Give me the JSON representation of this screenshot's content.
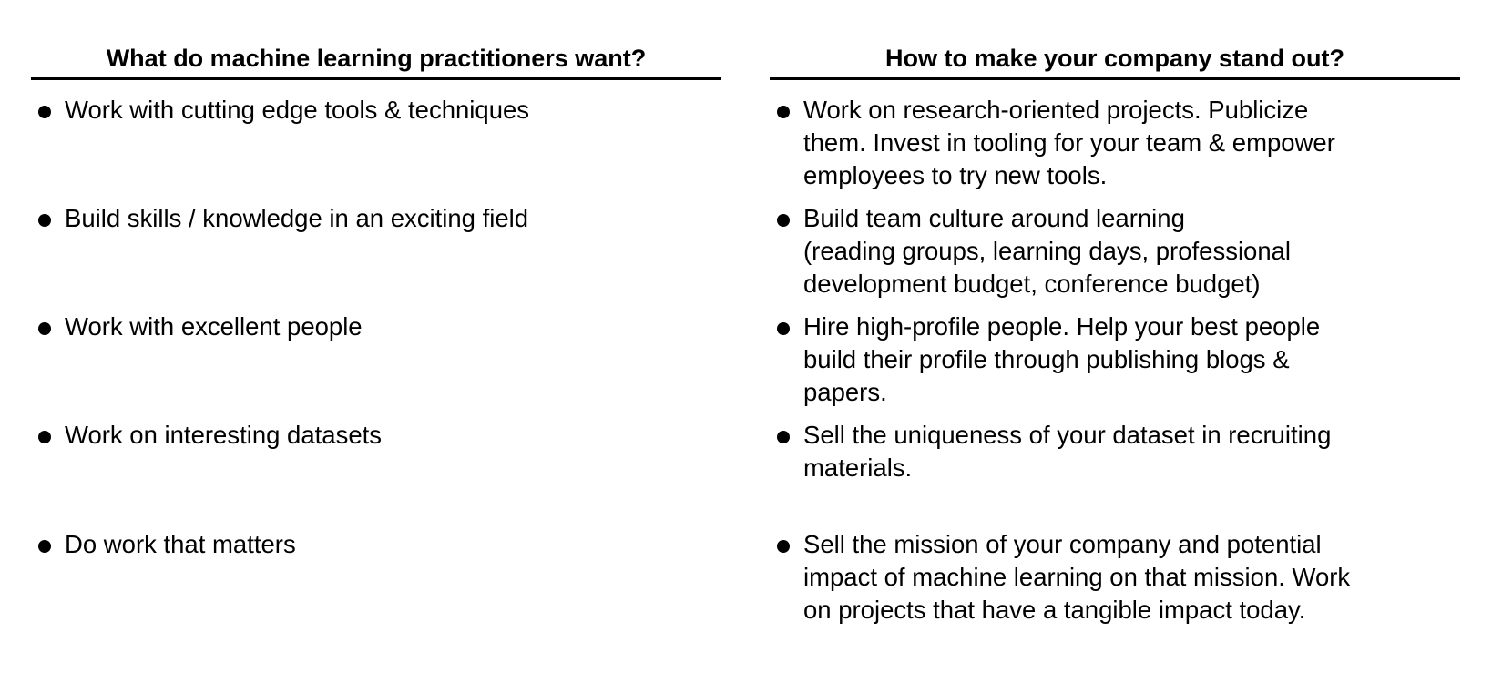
{
  "left": {
    "header": "What do machine learning practitioners want?",
    "items": [
      "Work with cutting edge tools & techniques",
      "Build skills / knowledge in an exciting field",
      "Work with excellent people",
      "Work on interesting datasets",
      "Do work that matters"
    ]
  },
  "right": {
    "header": "How to make your company stand out?",
    "items": [
      "Work on research-oriented projects. Publicize\nthem. Invest in tooling for your team & empower\nemployees to try new tools.",
      "Build team culture around learning\n(reading groups, learning days, professional\ndevelopment budget, conference budget)",
      "Hire high-profile people. Help your best people\nbuild their profile through publishing blogs &\npapers.",
      "Sell the uniqueness of your dataset in recruiting\nmaterials.",
      "Sell the mission of your company and potential\nimpact of machine learning on that mission. Work\non projects that have a tangible impact today."
    ]
  }
}
